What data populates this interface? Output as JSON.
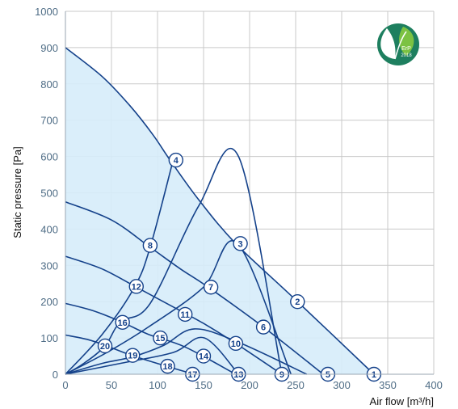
{
  "chart_data": {
    "type": "line",
    "xlabel": "Air flow [m³/h]",
    "ylabel": "Static pressure [Pa]",
    "xlim": [
      0,
      400
    ],
    "ylim": [
      0,
      1000
    ],
    "x_ticks": [
      "0",
      "50",
      "100",
      "150",
      "200",
      "250",
      "300",
      "350",
      "400"
    ],
    "y_ticks": [
      "0",
      "100",
      "200",
      "300",
      "400",
      "500",
      "600",
      "700",
      "800",
      "900",
      "1000"
    ],
    "grid": true,
    "fill_color": "#d6ecf9",
    "line_color": "#14418a",
    "fan_curves": [
      {
        "points": [
          [
            0,
            900
          ],
          [
            40,
            820
          ],
          [
            70,
            740
          ],
          [
            95,
            660
          ],
          [
            115,
            585
          ],
          [
            145,
            480
          ],
          [
            185,
            360
          ],
          [
            250,
            205
          ],
          [
            335,
            0
          ]
        ]
      },
      {
        "points": [
          [
            0,
            475
          ],
          [
            50,
            425
          ],
          [
            92,
            350
          ],
          [
            125,
            290
          ],
          [
            155,
            240
          ],
          [
            215,
            130
          ],
          [
            280,
            0
          ]
        ]
      },
      {
        "points": [
          [
            0,
            325
          ],
          [
            40,
            290
          ],
          [
            77,
            240
          ],
          [
            110,
            195
          ],
          [
            150,
            140
          ],
          [
            185,
            85
          ],
          [
            235,
            0
          ]
        ]
      },
      {
        "points": [
          [
            0,
            195
          ],
          [
            30,
            175
          ],
          [
            62,
            143
          ],
          [
            90,
            110
          ],
          [
            130,
            75
          ],
          [
            185,
            0
          ]
        ]
      },
      {
        "points": [
          [
            0,
            108
          ],
          [
            25,
            95
          ],
          [
            45,
            78
          ],
          [
            72,
            52
          ],
          [
            110,
            22
          ],
          [
            140,
            0
          ]
        ]
      }
    ],
    "system_curves": [
      {
        "points": [
          [
            0,
            0
          ],
          [
            40,
            30
          ],
          [
            73,
            48
          ],
          [
            107,
            80
          ],
          [
            140,
            125
          ],
          [
            188,
            88
          ],
          [
            262,
            0
          ]
        ]
      },
      {
        "points": [
          [
            0,
            0
          ],
          [
            60,
            30
          ],
          [
            117,
            60
          ],
          [
            151,
            100
          ],
          [
            188,
            0
          ]
        ]
      },
      {
        "points": [
          [
            0,
            0
          ],
          [
            45,
            60
          ],
          [
            90,
            130
          ],
          [
            150,
            240
          ],
          [
            187,
            360
          ],
          [
            245,
            0
          ]
        ]
      },
      {
        "points": [
          [
            0,
            0
          ],
          [
            20,
            30
          ],
          [
            43,
            78
          ],
          [
            60,
            145
          ],
          [
            92,
            195
          ],
          [
            145,
            465
          ],
          [
            188,
            600
          ],
          [
            235,
            0
          ]
        ]
      },
      {
        "points": [
          [
            0,
            0
          ],
          [
            40,
            110
          ],
          [
            75,
            240
          ],
          [
            92,
            350
          ],
          [
            117,
            590
          ]
        ]
      }
    ],
    "operating_points": [
      {
        "label": "1",
        "x": 335,
        "y": 0
      },
      {
        "label": "2",
        "x": 252,
        "y": 200
      },
      {
        "label": "3",
        "x": 190,
        "y": 360
      },
      {
        "label": "4",
        "x": 120,
        "y": 590
      },
      {
        "label": "5",
        "x": 285,
        "y": 0
      },
      {
        "label": "6",
        "x": 215,
        "y": 130
      },
      {
        "label": "7",
        "x": 158,
        "y": 240
      },
      {
        "label": "8",
        "x": 92,
        "y": 355
      },
      {
        "label": "9",
        "x": 235,
        "y": 0
      },
      {
        "label": "10",
        "x": 185,
        "y": 85
      },
      {
        "label": "11",
        "x": 130,
        "y": 165
      },
      {
        "label": "12",
        "x": 77,
        "y": 242
      },
      {
        "label": "13",
        "x": 188,
        "y": 0
      },
      {
        "label": "14",
        "x": 150,
        "y": 50
      },
      {
        "label": "15",
        "x": 103,
        "y": 100
      },
      {
        "label": "16",
        "x": 62,
        "y": 143
      },
      {
        "label": "17",
        "x": 138,
        "y": 0
      },
      {
        "label": "18",
        "x": 111,
        "y": 22
      },
      {
        "label": "19",
        "x": 73,
        "y": 52
      },
      {
        "label": "20",
        "x": 43,
        "y": 78
      }
    ]
  },
  "badge": {
    "text": "ErP",
    "year": "2018",
    "icon": "erp-leaf-icon",
    "color": "#1e7f5f",
    "leaf_color": "#7cc242"
  }
}
